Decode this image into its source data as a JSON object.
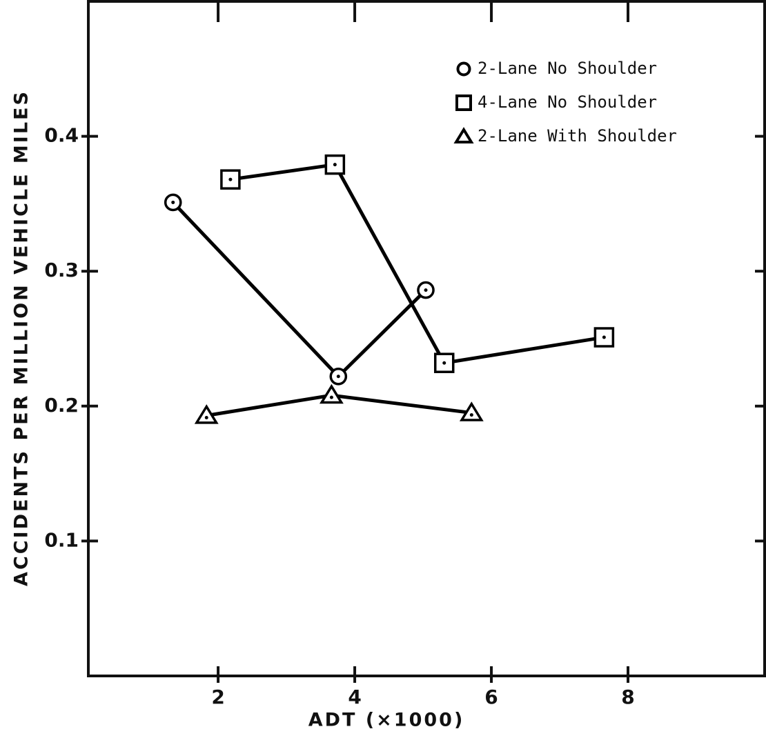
{
  "chart_data": {
    "type": "line",
    "ylabel": "ACCIDENTS PER MILLION VEHICLE MILES",
    "xlabel": "ADT (×1000)",
    "xlim": [
      0.1,
      10
    ],
    "xticks": [
      2,
      4,
      6,
      8
    ],
    "ylim": [
      0,
      0.5
    ],
    "yticks": [
      0.1,
      0.2,
      0.3,
      0.4
    ],
    "legend": "upper right",
    "series": [
      {
        "name": "2-Lane No Shoulder",
        "color": "#000000",
        "marker": "circle",
        "x": [
          1.34,
          3.76,
          5.04
        ],
        "values": [
          0.351,
          0.222,
          0.286
        ]
      },
      {
        "name": "4-Lane No Shoulder",
        "color": "#000000",
        "marker": "square",
        "x": [
          2.18,
          3.71,
          5.31,
          7.65
        ],
        "values": [
          0.368,
          0.379,
          0.232,
          0.251
        ]
      },
      {
        "name": "2-Lane With Shoulder",
        "color": "#000000",
        "marker": "triangle",
        "x": [
          1.83,
          3.66,
          5.71
        ],
        "values": [
          0.193,
          0.208,
          0.195
        ]
      }
    ]
  }
}
